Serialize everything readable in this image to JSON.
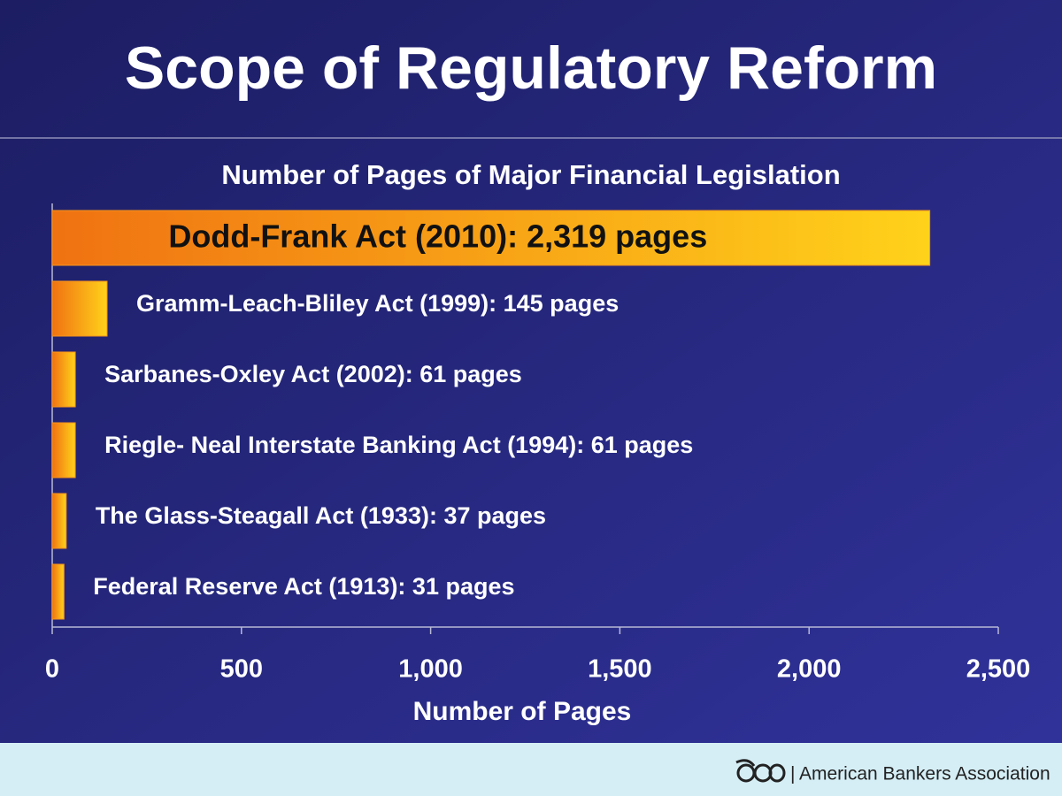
{
  "chart_data": {
    "type": "bar",
    "orientation": "horizontal",
    "title": "Scope of Regulatory Reform",
    "subtitle": "Number of Pages of Major Financial Legislation",
    "values": [
      2319,
      145,
      61,
      61,
      37,
      31
    ],
    "value_labels": [
      "Dodd-Frank Act (2010): 2,319 pages",
      "Gramm-Leach-Bliley Act (1999): 145 pages",
      "Sarbanes-Oxley Act (2002): 61 pages",
      "Riegle- Neal Interstate Banking Act (1994): 61 pages",
      "The Glass-Steagall Act (1933): 37 pages",
      "Federal Reserve Act (1913): 31 pages"
    ],
    "color": "#f7941d",
    "xlabel": "Number of Pages",
    "xlim": [
      0,
      2500
    ],
    "xticks": [
      0,
      500,
      {
        "value": 1000,
        "label": "1,000"
      },
      {
        "value": 1500,
        "label": "1,500"
      },
      {
        "value": 2000,
        "label": "2,000"
      },
      {
        "value": 2500,
        "label": "2,500"
      }
    ]
  },
  "footer": "American Bankers Association"
}
